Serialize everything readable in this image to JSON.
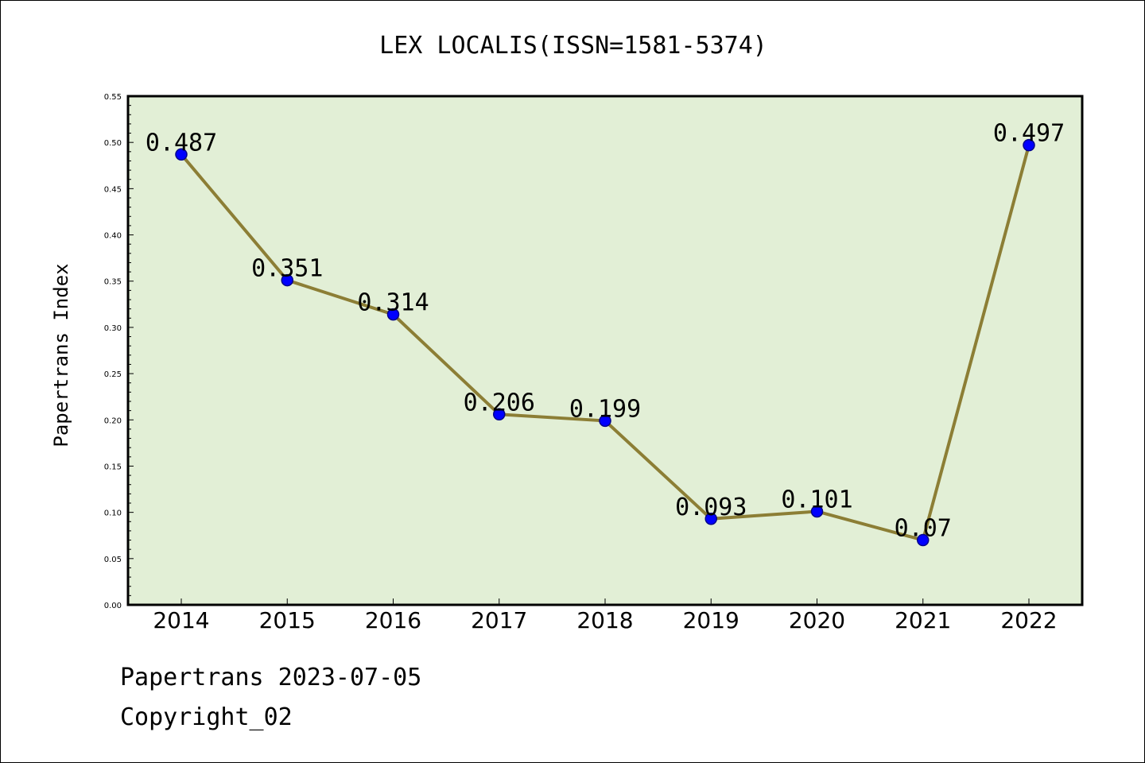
{
  "chart_data": {
    "type": "line",
    "title": "LEX LOCALIS(ISSN=1581-5374)",
    "xlabel": "",
    "ylabel": "Papertrans Index",
    "categories": [
      "2014",
      "2015",
      "2016",
      "2017",
      "2018",
      "2019",
      "2020",
      "2021",
      "2022"
    ],
    "series": [
      {
        "values": [
          0.487,
          0.351,
          0.314,
          0.206,
          0.199,
          0.093,
          0.101,
          0.07,
          0.497
        ],
        "value_labels": [
          "0.487",
          "0.351",
          "0.314",
          "0.206",
          "0.199",
          "0.093",
          "0.101",
          "0.07",
          "0.497"
        ]
      }
    ],
    "ylim": [
      0,
      0.55
    ],
    "yticks": [
      "0.00",
      "0.05",
      "0.10",
      "0.15",
      "0.20",
      "0.25",
      "0.30",
      "0.35",
      "0.40",
      "0.45",
      "0.50",
      "0.55"
    ],
    "grid": false,
    "legend": "none",
    "colors": {
      "plot_background": "#e2efd6",
      "line": "#8c7e35",
      "marker": "#0000ff",
      "marker_edge": "#00008b"
    }
  },
  "footer": {
    "date_text": "Papertrans 2023-07-05",
    "copyright_text": "Copyright_02"
  }
}
